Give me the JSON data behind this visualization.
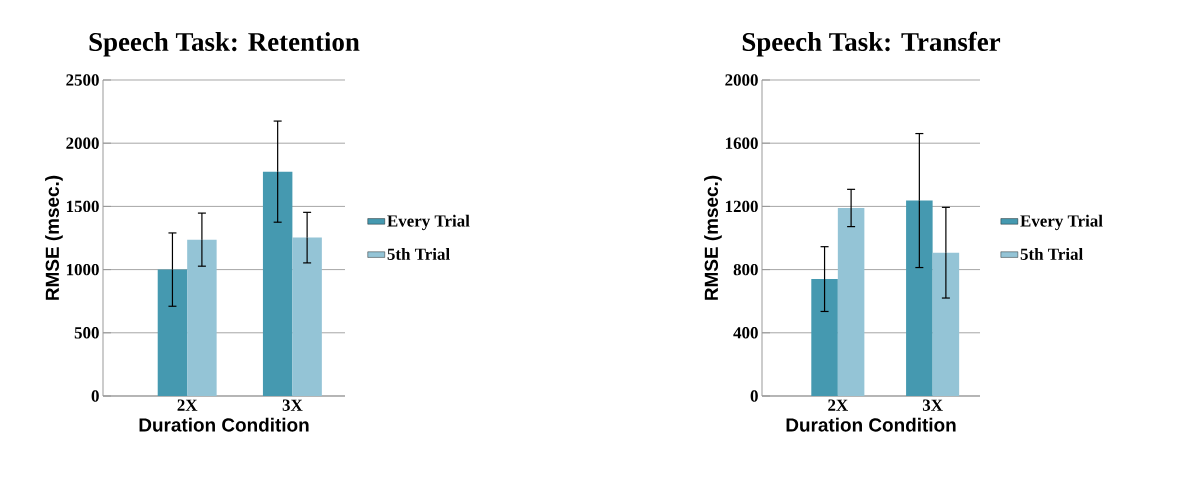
{
  "chart_data": [
    {
      "type": "bar",
      "title": "Speech Task: Retention",
      "xlabel": "Duration Condition",
      "ylabel": "RMSE (msec.)",
      "categories": [
        "2X",
        "3X"
      ],
      "series": [
        {
          "name": "Every Trial",
          "color": "#4599b0",
          "values": [
            1000,
            1775
          ],
          "errors": [
            290,
            400
          ]
        },
        {
          "name": "5th Trial",
          "color": "#94c4d6",
          "values": [
            1237,
            1253
          ],
          "errors": [
            210,
            200
          ]
        }
      ],
      "ylim": [
        0,
        2500
      ],
      "yticks": [
        0,
        500,
        1000,
        1500,
        2000,
        2500
      ],
      "grid": "y",
      "legend": "right"
    },
    {
      "type": "bar",
      "title": "Speech Task: Transfer",
      "xlabel": "Duration Condition",
      "ylabel": "RMSE (msec.)",
      "categories": [
        "2X",
        "3X"
      ],
      "series": [
        {
          "name": "Every Trial",
          "color": "#4599b0",
          "values": [
            740,
            1237
          ],
          "errors": [
            205,
            424
          ]
        },
        {
          "name": "5th Trial",
          "color": "#94c4d6",
          "values": [
            1190,
            907
          ],
          "errors": [
            118,
            287
          ]
        }
      ],
      "ylim": [
        0,
        2000
      ],
      "yticks": [
        0,
        400,
        800,
        1200,
        1600,
        2000
      ],
      "grid": "y",
      "legend": "right"
    }
  ]
}
